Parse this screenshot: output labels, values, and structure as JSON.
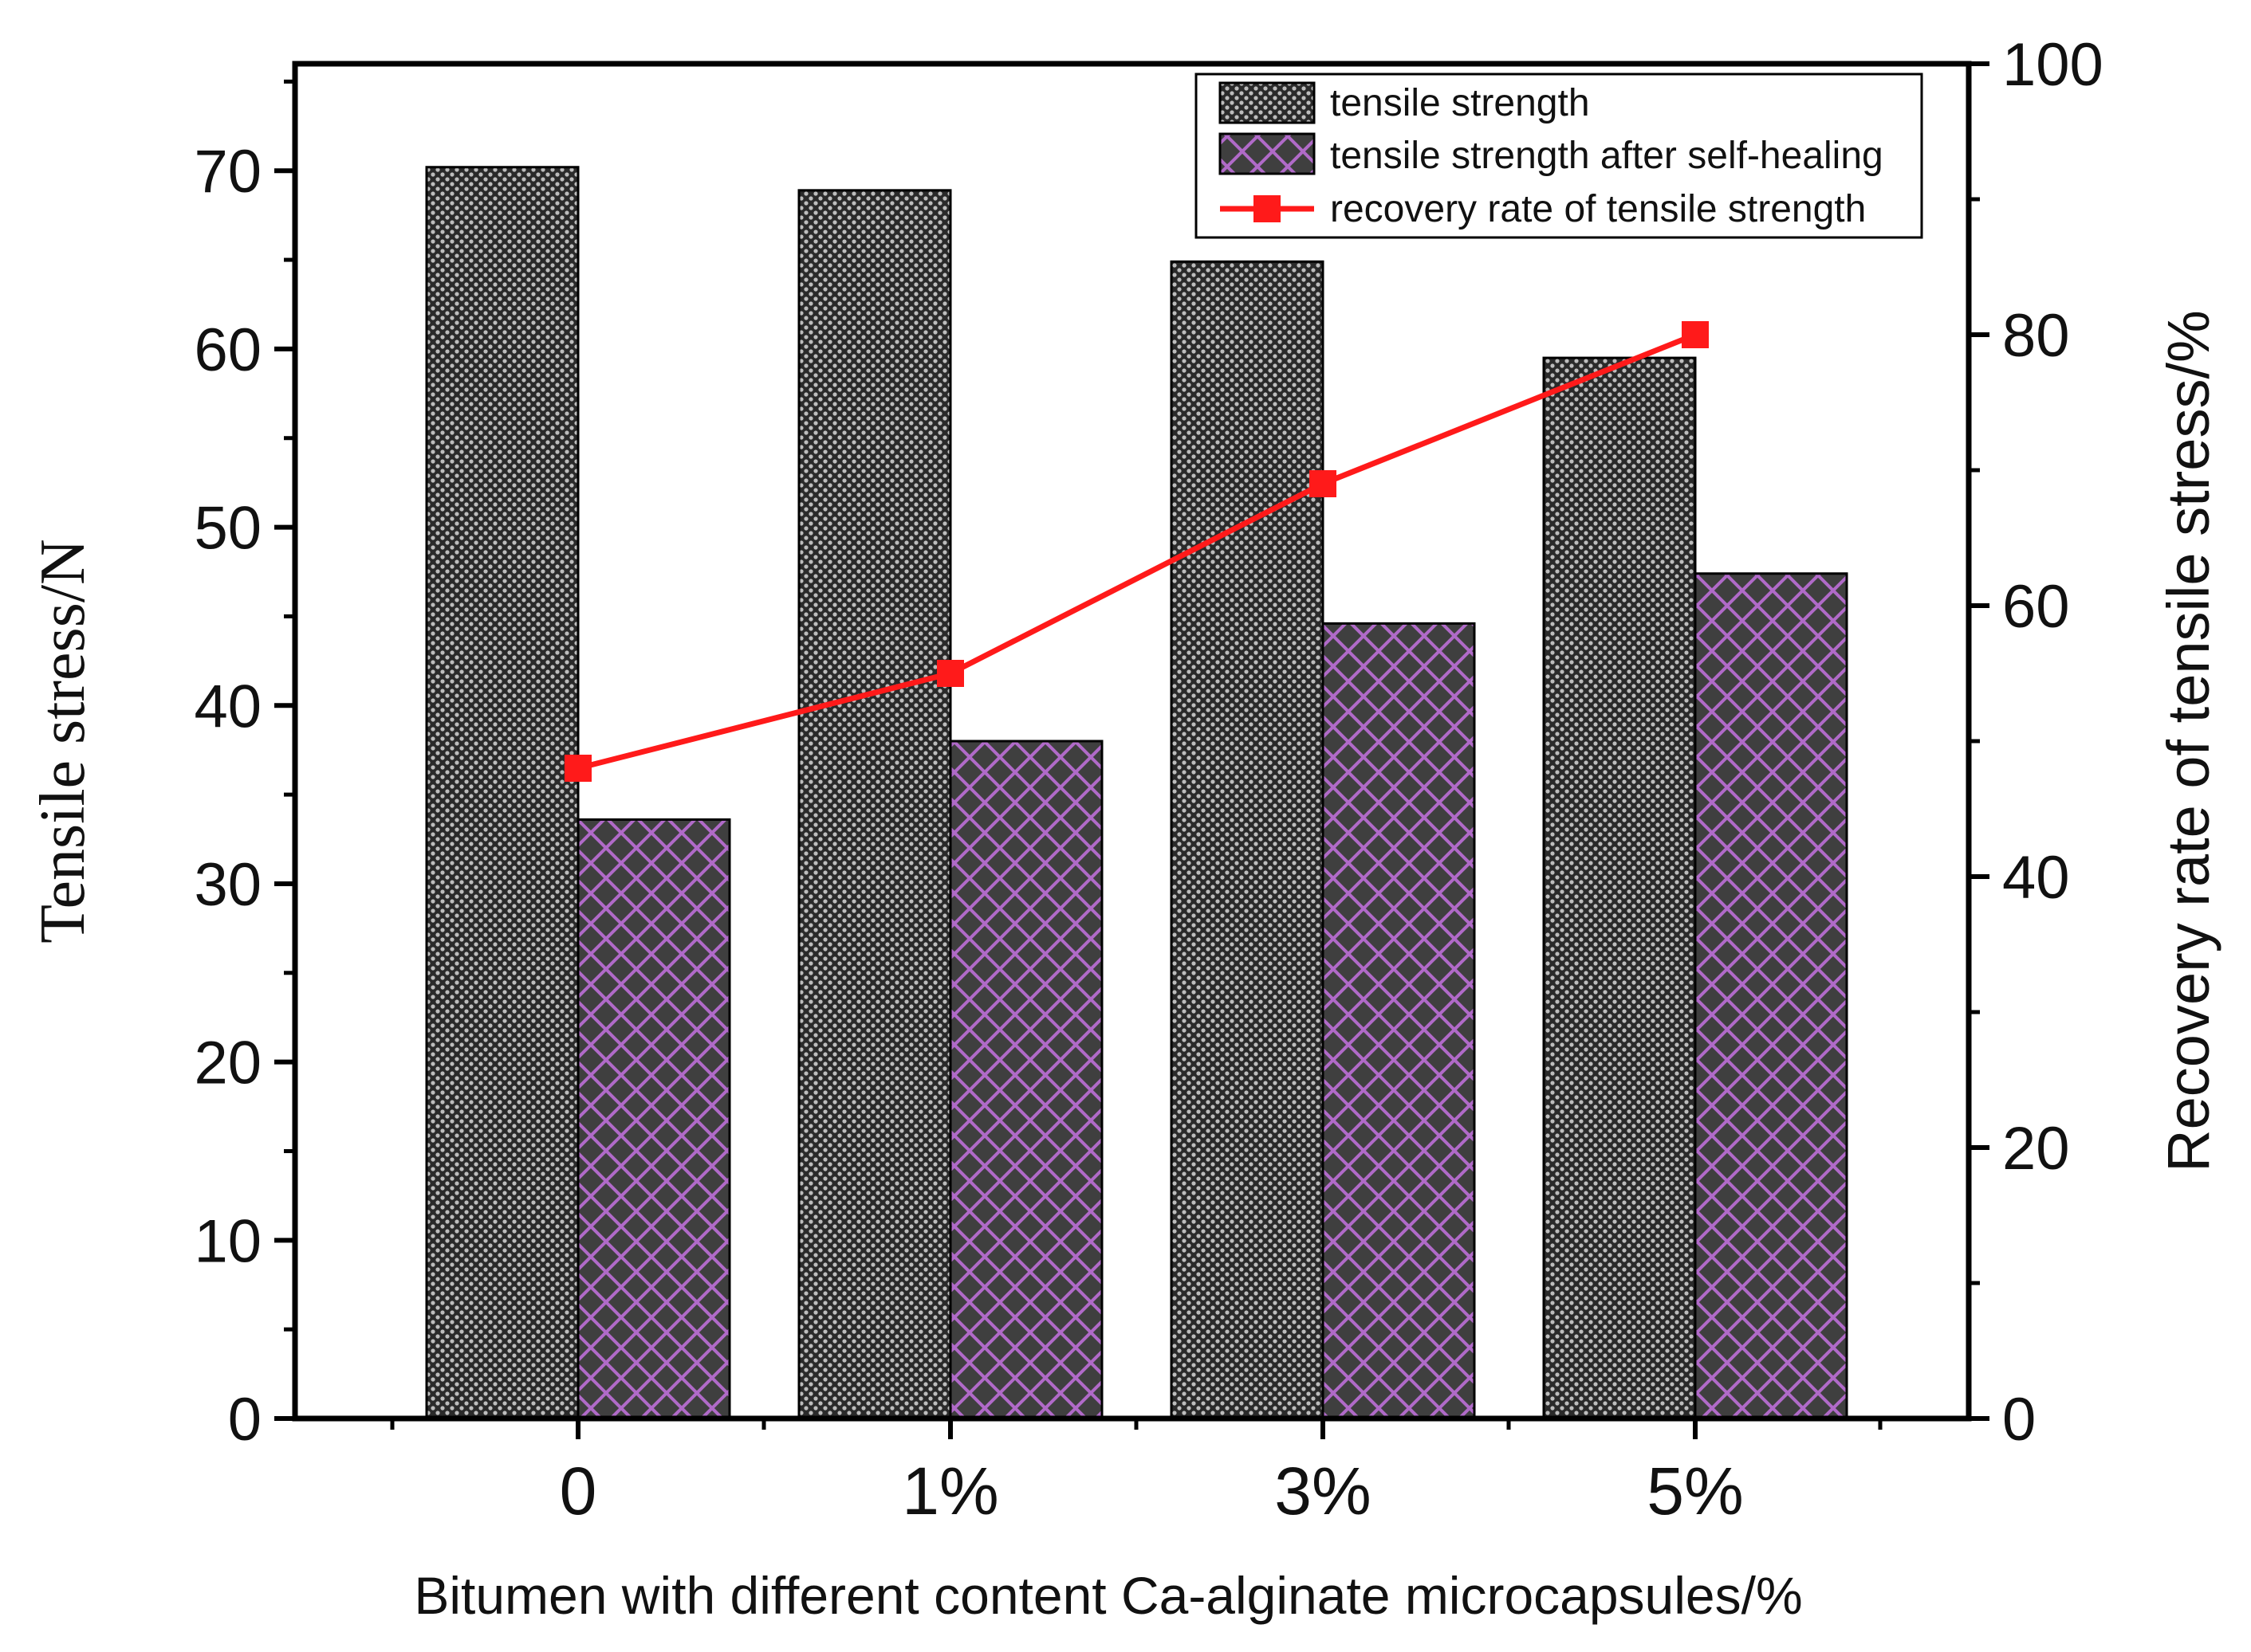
{
  "chart_data": {
    "type": "bar",
    "categories": [
      "0",
      "1%",
      "3%",
      "5%"
    ],
    "series": [
      {
        "name": "tensile strength",
        "kind": "bar",
        "axis": "left",
        "pattern": "dots",
        "values": [
          70.2,
          68.9,
          64.9,
          59.5
        ]
      },
      {
        "name": "tensile strength after self-healing",
        "kind": "bar",
        "axis": "left",
        "pattern": "crosshatch",
        "values": [
          33.6,
          38.0,
          44.6,
          47.4
        ]
      },
      {
        "name": "recovery rate of tensile strength",
        "kind": "line",
        "axis": "right",
        "color": "#ff1a1a",
        "values": [
          48,
          55,
          69,
          80
        ]
      }
    ],
    "xlabel": "Bitumen with different content Ca-alginate microcapsules/%",
    "ylabel": "Tensile stress/N",
    "y2label": "Recovery rate of tensile stress/%",
    "ylim": [
      0,
      76
    ],
    "y2lim": [
      0,
      100
    ],
    "yticks": [
      "0",
      "10",
      "20",
      "30",
      "40",
      "50",
      "60",
      "70"
    ],
    "y2ticks": [
      "0",
      "20",
      "40",
      "60",
      "80",
      "100"
    ],
    "grid": false,
    "legend_position": "top-right",
    "colors": {
      "bar_dark": "#3a3a3a",
      "bar_purple": "#b06ac8",
      "line": "#ff1a1a"
    }
  }
}
